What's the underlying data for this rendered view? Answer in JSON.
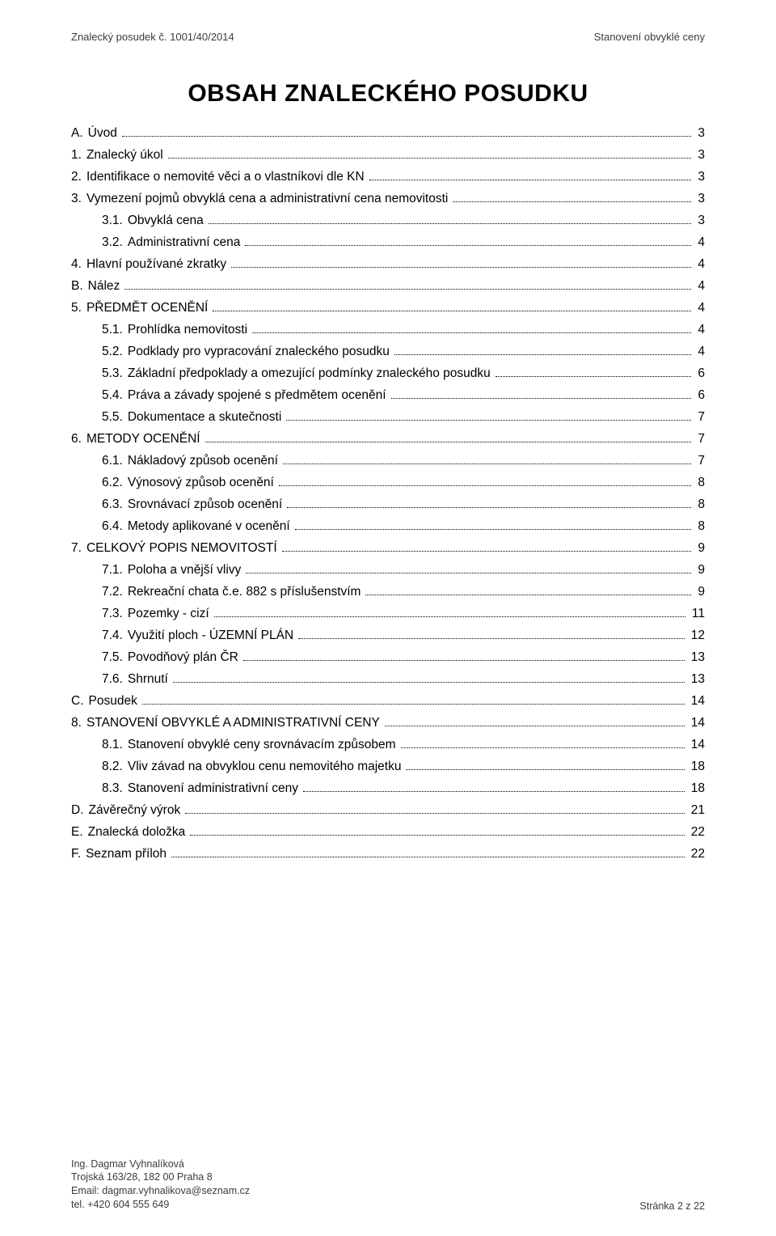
{
  "header": {
    "left": "Znalecký posudek č. 1001/40/2014",
    "right": "Stanovení obvyklé ceny"
  },
  "title_prefix": "O",
  "title_rest": "BSAH ZNALECKÉHO POSUDKU",
  "toc": [
    {
      "lvl": 1,
      "num": "A.",
      "label": "Úvod",
      "page": "3"
    },
    {
      "lvl": 1,
      "num": "1.",
      "label": "Znalecký úkol",
      "page": "3"
    },
    {
      "lvl": 1,
      "num": "2.",
      "label": "Identifikace o nemovité věci a o vlastníkovi dle KN",
      "page": "3"
    },
    {
      "lvl": 1,
      "num": "3.",
      "label": "Vymezení pojmů obvyklá cena a administrativní cena nemovitosti",
      "page": "3"
    },
    {
      "lvl": 2,
      "num": "3.1.",
      "label": "Obvyklá cena",
      "page": "3"
    },
    {
      "lvl": 2,
      "num": "3.2.",
      "label": "Administrativní cena",
      "page": "4"
    },
    {
      "lvl": 1,
      "num": "4.",
      "label": "Hlavní používané zkratky",
      "page": "4"
    },
    {
      "lvl": 1,
      "num": "B.",
      "label": "Nález",
      "page": "4"
    },
    {
      "lvl": 1,
      "num": "5.",
      "label": "PŘEDMĚT OCENĚNÍ",
      "page": "4"
    },
    {
      "lvl": 2,
      "num": "5.1.",
      "label": "Prohlídka nemovitosti",
      "page": "4"
    },
    {
      "lvl": 2,
      "num": "5.2.",
      "label": "Podklady pro vypracování znaleckého posudku",
      "page": "4"
    },
    {
      "lvl": 2,
      "num": "5.3.",
      "label": "Základní předpoklady a omezující podmínky znaleckého posudku",
      "page": "6"
    },
    {
      "lvl": 2,
      "num": "5.4.",
      "label": "Práva a závady spojené s předmětem ocenění",
      "page": "6"
    },
    {
      "lvl": 2,
      "num": "5.5.",
      "label": "Dokumentace a skutečnosti",
      "page": "7"
    },
    {
      "lvl": 1,
      "num": "6.",
      "label": "METODY OCENĚNÍ",
      "page": "7"
    },
    {
      "lvl": 2,
      "num": "6.1.",
      "label": "Nákladový způsob ocenění",
      "page": "7"
    },
    {
      "lvl": 2,
      "num": "6.2.",
      "label": "Výnosový způsob ocenění",
      "page": "8"
    },
    {
      "lvl": 2,
      "num": "6.3.",
      "label": "Srovnávací způsob ocenění",
      "page": "8"
    },
    {
      "lvl": 2,
      "num": "6.4.",
      "label": "Metody aplikované v ocenění",
      "page": "8"
    },
    {
      "lvl": 1,
      "num": "7.",
      "label": "CELKOVÝ POPIS NEMOVITOSTÍ",
      "page": "9"
    },
    {
      "lvl": 2,
      "num": "7.1.",
      "label": "Poloha a vnější vlivy",
      "page": "9"
    },
    {
      "lvl": 2,
      "num": "7.2.",
      "label": "Rekreační chata č.e. 882 s příslušenstvím",
      "page": "9"
    },
    {
      "lvl": 2,
      "num": "7.3.",
      "label": "Pozemky - cizí",
      "page": "11"
    },
    {
      "lvl": 2,
      "num": "7.4.",
      "label": "Využití ploch - ÚZEMNÍ PLÁN",
      "page": "12"
    },
    {
      "lvl": 2,
      "num": "7.5.",
      "label": "Povodňový plán ČR",
      "page": "13"
    },
    {
      "lvl": 2,
      "num": "7.6.",
      "label": "Shrnutí",
      "page": "13"
    },
    {
      "lvl": 1,
      "num": "C.",
      "label": "Posudek",
      "page": "14"
    },
    {
      "lvl": 1,
      "num": "8.",
      "label": "STANOVENÍ OBVYKLÉ A ADMINISTRATIVNÍ CENY",
      "page": "14"
    },
    {
      "lvl": 2,
      "num": "8.1.",
      "label": "Stanovení obvyklé ceny srovnávacím způsobem",
      "page": "14"
    },
    {
      "lvl": 2,
      "num": "8.2.",
      "label": "Vliv závad na obvyklou cenu nemovitého majetku",
      "page": "18"
    },
    {
      "lvl": 2,
      "num": "8.3.",
      "label": "Stanovení administrativní ceny",
      "page": "18"
    },
    {
      "lvl": 1,
      "num": "D.",
      "label": "Závěrečný výrok",
      "page": "21"
    },
    {
      "lvl": 1,
      "num": "E.",
      "label": "Znalecká doložka",
      "page": "22"
    },
    {
      "lvl": 1,
      "num": "F.",
      "label": "Seznam příloh",
      "page": "22"
    }
  ],
  "footer": {
    "name": "Ing. Dagmar Vyhnalíková",
    "addr": "Trojská 163/28, 182 00 Praha 8",
    "email_label": "Email: ",
    "email": "dagmar.vyhnalikova@seznam.cz",
    "tel": "tel. +420 604 555 649",
    "page": "Stránka 2 z 22"
  }
}
